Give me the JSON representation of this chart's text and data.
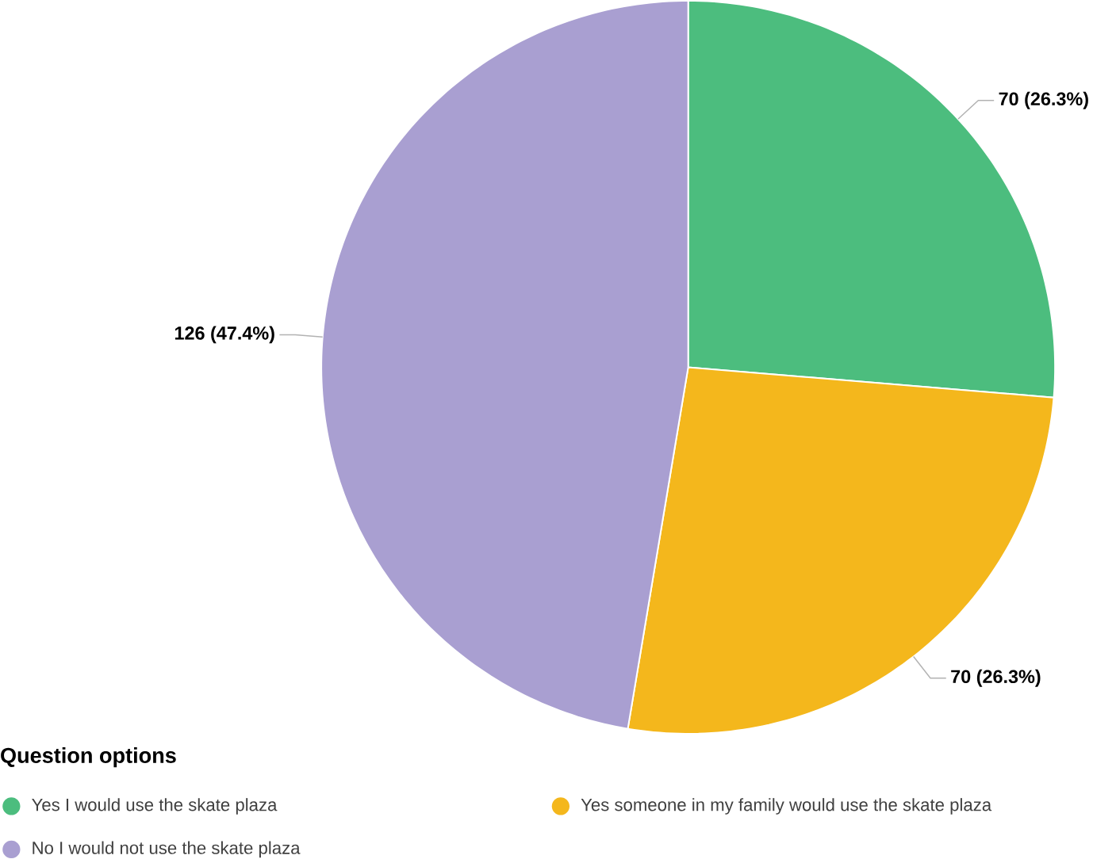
{
  "chart_data": {
    "type": "pie",
    "legend_title": "Question options",
    "legend": "bottom",
    "categories": [
      "Yes I would use the skate plaza",
      "Yes someone in my family would use the skate plaza",
      "No I would not use the skate plaza"
    ],
    "values": [
      70,
      70,
      126
    ],
    "colors": [
      "#4cbd7e",
      "#f4b71c",
      "#a99fd1"
    ],
    "value_labels": [
      "70 (26.3%)",
      "70 (26.3%)",
      "126 (47.4%)"
    ]
  }
}
